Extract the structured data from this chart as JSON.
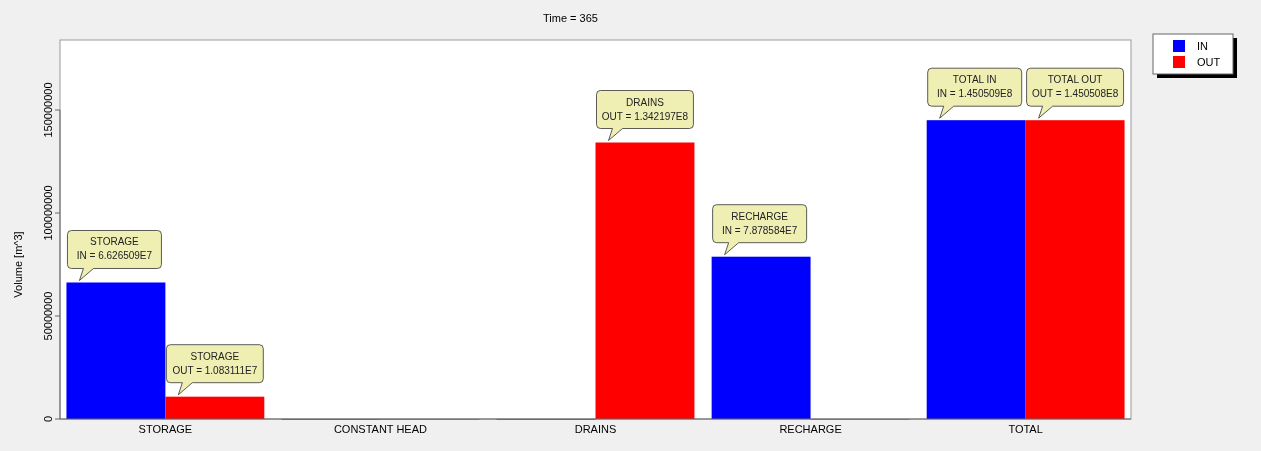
{
  "chart_data": {
    "type": "bar",
    "title": "Time = 365",
    "ylabel": "Volume [m^3]",
    "categories": [
      "STORAGE",
      "CONSTANT HEAD",
      "DRAINS",
      "RECHARGE",
      "TOTAL"
    ],
    "series": [
      {
        "name": "IN",
        "color": "#0000ff",
        "values": [
          66265090,
          0,
          0,
          78785840,
          145050900
        ],
        "value_labels": [
          "STORAGE\nIN = 6.626509E7",
          null,
          null,
          "RECHARGE\nIN = 7.878584E7",
          "TOTAL IN\nIN = 1.450509E8"
        ]
      },
      {
        "name": "OUT",
        "color": "#ff0000",
        "values": [
          10831110,
          0,
          134219700,
          0,
          145050800
        ],
        "value_labels": [
          "STORAGE\nOUT = 1.083111E7",
          null,
          "DRAINS\nOUT = 1.342197E8",
          null,
          "TOTAL OUT\nOUT = 1.450508E8"
        ]
      }
    ],
    "ylim": [
      0,
      150000000
    ],
    "yticks": [
      0,
      50000000,
      100000000,
      150000000
    ],
    "legend": "top right"
  }
}
